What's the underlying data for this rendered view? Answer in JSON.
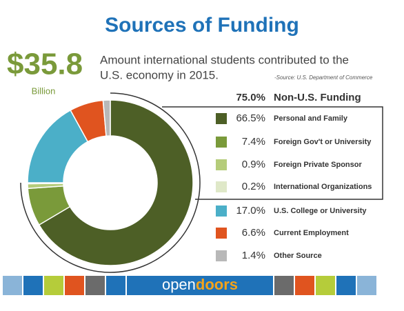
{
  "chart_data": {
    "type": "donut",
    "title": "Sources of Funding",
    "headline": "$35.8",
    "headline_unit": "Billion",
    "subtitle_lines": [
      "Amount international students contributed to the",
      "U.S. economy in 2015."
    ],
    "source": "-Source: U.S. Department of Commerce",
    "group": {
      "name": "Non-U.S. Funding",
      "value": 75.0,
      "value_label": "75.0%"
    },
    "categories": [
      "Personal and Family",
      "Foreign Gov't or University",
      "Foreign Private Sponsor",
      "International Organizations",
      "U.S. College or University",
      "Current Employment",
      "Other Source"
    ],
    "values": [
      66.5,
      7.4,
      0.9,
      0.2,
      17.0,
      6.6,
      1.4
    ],
    "value_labels": [
      "66.5%",
      "7.4%",
      "0.9%",
      "0.2%",
      "17.0%",
      "6.6%",
      "1.4%"
    ],
    "colors": [
      "#4d5f26",
      "#7a9a3a",
      "#b5cc7a",
      "#dfe8c8",
      "#4bafc8",
      "#e0541f",
      "#b8b8b8"
    ],
    "brand": {
      "first": "open",
      "second": "doors"
    }
  }
}
